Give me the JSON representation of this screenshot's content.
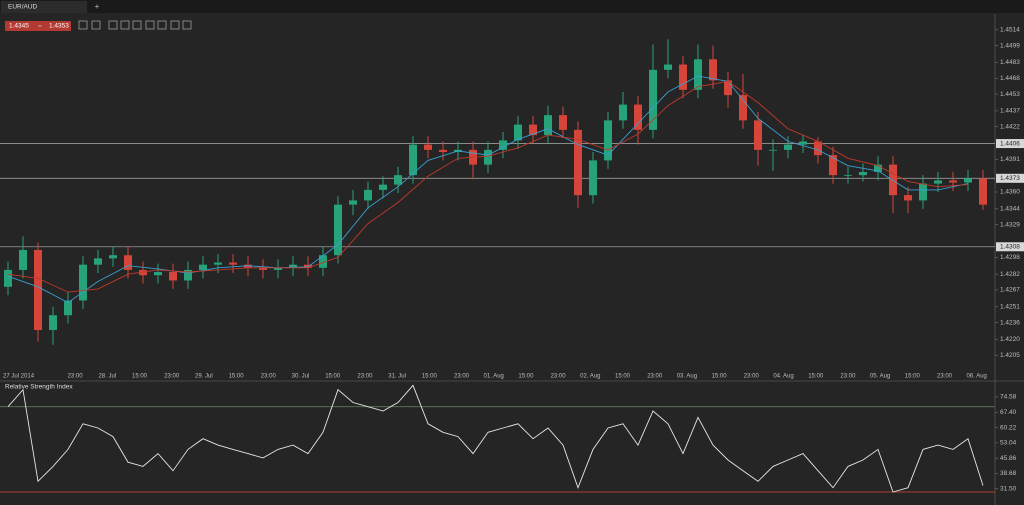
{
  "tab": {
    "symbol": "EUR/AUD",
    "new_tab": "+"
  },
  "quote": {
    "bid": 1.4345,
    "ask": 1.4353
  },
  "chart_data": [
    {
      "type": "candlestick",
      "categories": [
        "27 Jul 2014",
        null,
        "23:00",
        "28. Jul",
        "15:00",
        "23:00",
        "29. Jul",
        "15:00",
        "23:00",
        "30. Jul",
        "15:00",
        "23:00",
        "31. Jul",
        "15:00",
        "23:00",
        "01. Aug",
        "15:00",
        "23:00",
        "02. Aug",
        "15:00",
        "23:00",
        "03. Aug",
        "15:00",
        "23:00",
        "04. Aug",
        "15:00",
        "23:00",
        "05. Aug",
        "15:00",
        "23:00",
        "06. Aug"
      ],
      "open": [
        1.427,
        1.4286,
        1.4305,
        1.4229,
        1.4243,
        1.4257,
        1.4291,
        1.4297,
        1.43,
        1.4286,
        1.4281,
        1.4284,
        1.4276,
        1.4286,
        1.4291,
        1.4293,
        1.4291,
        1.4288,
        1.4286,
        1.4288,
        1.4291,
        1.4288,
        1.43,
        1.4348,
        1.4352,
        1.4362,
        1.4367,
        1.4376,
        1.4405,
        1.44,
        1.4398,
        1.44,
        1.4386,
        1.44,
        1.4409,
        1.4424,
        1.4414,
        1.4433,
        1.4419,
        1.4357,
        1.439,
        1.4428,
        1.4443,
        1.4419,
        1.4476,
        1.4481,
        1.4457,
        1.4486,
        1.4466,
        1.4452,
        1.4428,
        1.44,
        1.44,
        1.4405,
        1.4408,
        1.4395,
        1.4376,
        1.4376,
        1.4379,
        1.4386,
        1.4357,
        1.4352,
        1.4368,
        1.4371,
        1.4369,
        1.4373
      ],
      "high": [
        1.4294,
        1.4318,
        1.4312,
        1.4251,
        1.4265,
        1.4299,
        1.4305,
        1.4308,
        1.4308,
        1.4294,
        1.4292,
        1.4292,
        1.4294,
        1.4299,
        1.4301,
        1.4301,
        1.4299,
        1.4296,
        1.4296,
        1.4299,
        1.4299,
        1.4308,
        1.4356,
        1.4362,
        1.437,
        1.4375,
        1.4384,
        1.4413,
        1.4413,
        1.4408,
        1.4408,
        1.4408,
        1.4408,
        1.4417,
        1.4432,
        1.4432,
        1.4442,
        1.4441,
        1.4427,
        1.4398,
        1.4436,
        1.4455,
        1.4451,
        1.45,
        1.4505,
        1.4489,
        1.45,
        1.4499,
        1.4474,
        1.4472,
        1.4436,
        1.441,
        1.4413,
        1.4414,
        1.4412,
        1.4403,
        1.4384,
        1.4387,
        1.4394,
        1.4394,
        1.4365,
        1.4376,
        1.4379,
        1.4379,
        1.4381,
        1.4381
      ],
      "low": [
        1.4262,
        1.4278,
        1.4218,
        1.4215,
        1.4235,
        1.4249,
        1.4283,
        1.4289,
        1.4278,
        1.4273,
        1.4273,
        1.4268,
        1.4268,
        1.4278,
        1.4283,
        1.4283,
        1.428,
        1.4278,
        1.4278,
        1.428,
        1.428,
        1.428,
        1.4292,
        1.4338,
        1.4344,
        1.4354,
        1.4359,
        1.4368,
        1.4392,
        1.439,
        1.439,
        1.4372,
        1.4378,
        1.4392,
        1.4401,
        1.4406,
        1.4406,
        1.4411,
        1.4345,
        1.4349,
        1.4382,
        1.442,
        1.4405,
        1.4411,
        1.4468,
        1.4449,
        1.4449,
        1.4458,
        1.444,
        1.442,
        1.4385,
        1.438,
        1.4392,
        1.4397,
        1.4387,
        1.4368,
        1.4368,
        1.437,
        1.4371,
        1.434,
        1.434,
        1.4344,
        1.436,
        1.4361,
        1.4361,
        1.4343
      ],
      "close": [
        1.4286,
        1.4305,
        1.4229,
        1.4243,
        1.4257,
        1.4291,
        1.4297,
        1.43,
        1.4286,
        1.4281,
        1.4284,
        1.4276,
        1.4286,
        1.4291,
        1.4293,
        1.4291,
        1.4288,
        1.4286,
        1.4288,
        1.4291,
        1.4288,
        1.43,
        1.4348,
        1.4352,
        1.4362,
        1.4367,
        1.4376,
        1.4405,
        1.44,
        1.4398,
        1.44,
        1.4386,
        1.44,
        1.4409,
        1.4424,
        1.4414,
        1.4433,
        1.4419,
        1.4357,
        1.439,
        1.4428,
        1.4443,
        1.4419,
        1.4476,
        1.4481,
        1.4457,
        1.4486,
        1.4466,
        1.4452,
        1.4428,
        1.44,
        1.44,
        1.4405,
        1.4408,
        1.4395,
        1.4376,
        1.4376,
        1.4379,
        1.4386,
        1.4357,
        1.4352,
        1.4368,
        1.4371,
        1.4369,
        1.4373,
        1.4348
      ],
      "up_color": "#26a37a",
      "down_color": "#d6453a",
      "series": [
        {
          "color": "#3a9fd0",
          "x": [
            0,
            2,
            4,
            6,
            8,
            10,
            12,
            14,
            16,
            18,
            20,
            22,
            24,
            26,
            28,
            30,
            32,
            34,
            36,
            38,
            40,
            42,
            44,
            46,
            48,
            50,
            52,
            54,
            56,
            58,
            60,
            62,
            64
          ],
          "values": [
            1.428,
            1.427,
            1.4255,
            1.4275,
            1.429,
            1.4287,
            1.4283,
            1.4288,
            1.429,
            1.4288,
            1.4289,
            1.431,
            1.4345,
            1.4365,
            1.439,
            1.4399,
            1.4395,
            1.441,
            1.442,
            1.4405,
            1.4395,
            1.4425,
            1.4455,
            1.447,
            1.4465,
            1.443,
            1.4408,
            1.44,
            1.4385,
            1.438,
            1.4362,
            1.4362,
            1.4368
          ]
        },
        {
          "color": "#c0392b",
          "x": [
            0,
            2,
            4,
            6,
            8,
            10,
            12,
            14,
            16,
            18,
            20,
            22,
            24,
            26,
            28,
            30,
            32,
            34,
            36,
            38,
            40,
            42,
            44,
            46,
            48,
            50,
            52,
            54,
            56,
            58,
            60,
            62,
            64
          ],
          "values": [
            1.4282,
            1.4278,
            1.4265,
            1.4268,
            1.4282,
            1.4286,
            1.4284,
            1.4286,
            1.4288,
            1.4288,
            1.4288,
            1.4298,
            1.433,
            1.435,
            1.4375,
            1.4392,
            1.4394,
            1.4402,
            1.4414,
            1.441,
            1.44,
            1.4415,
            1.4442,
            1.446,
            1.4465,
            1.4445,
            1.442,
            1.4408,
            1.4392,
            1.4385,
            1.437,
            1.4365,
            1.4367
          ]
        }
      ],
      "levels": [
        1.4406,
        1.4373,
        1.4308
      ],
      "ylim": [
        1.4191,
        1.4529
      ],
      "yticks": [
        1.4514,
        1.4499,
        1.4483,
        1.4468,
        1.4453,
        1.4437,
        1.4422,
        1.4391,
        {
          "value": 1.436,
          "label": "1.4360"
        },
        1.4344,
        1.4329,
        1.4298,
        1.4282,
        1.4267,
        1.4251,
        1.4236,
        {
          "value": 1.422,
          "label": "1.4220"
        },
        1.4205
      ]
    },
    {
      "type": "line",
      "title": "Relative Strength Index",
      "color": "#e6e6e6",
      "values": [
        70,
        78,
        35,
        42,
        50,
        62,
        60,
        56,
        44,
        42,
        48,
        40,
        50,
        55,
        52,
        50,
        48,
        46,
        50,
        52,
        48,
        58,
        78,
        72,
        70,
        68,
        72,
        80,
        62,
        58,
        56,
        48,
        58,
        60,
        62,
        55,
        60,
        52,
        32,
        50,
        60,
        62,
        52,
        68,
        62,
        48,
        65,
        52,
        45,
        40,
        35,
        42,
        45,
        48,
        40,
        32,
        42,
        45,
        50,
        30,
        32,
        50,
        52,
        50,
        55,
        33
      ],
      "levels": [
        {
          "value": 70,
          "color": "#5d7a5d"
        },
        {
          "value": 30,
          "color": "#b03a30"
        }
      ],
      "ylim": [
        23.9,
        81.6
      ],
      "yticks": [
        74.58,
        {
          "value": 67.4,
          "label": "67.40"
        },
        60.22,
        53.04,
        45.86,
        38.68,
        {
          "value": 31.5,
          "label": "31.50"
        }
      ]
    }
  ]
}
